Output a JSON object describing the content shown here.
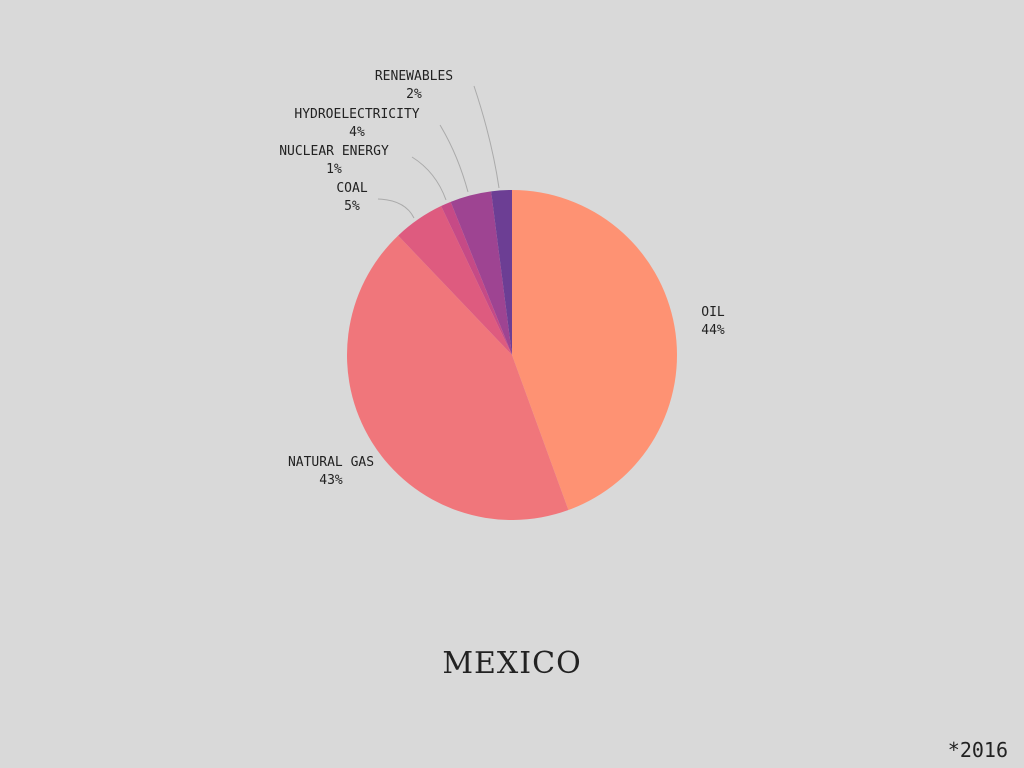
{
  "title": "MEXICO",
  "footnote": "*2016",
  "chart_data": {
    "type": "pie",
    "title": "MEXICO",
    "slices": [
      {
        "label": "OIL",
        "value": 44,
        "value_label": "44%",
        "color": "#fe9273"
      },
      {
        "label": "NATURAL GAS",
        "value": 43,
        "value_label": "43%",
        "color": "#f0767b"
      },
      {
        "label": "COAL",
        "value": 5,
        "value_label": "5%",
        "color": "#de5b7f"
      },
      {
        "label": "NUCLEAR ENERGY",
        "value": 1,
        "value_label": "1%",
        "color": "#c64a86"
      },
      {
        "label": "HYDROELECTRICITY",
        "value": 4,
        "value_label": "4%",
        "color": "#9e4492"
      },
      {
        "label": "RENEWABLES",
        "value": 2,
        "value_label": "2%",
        "color": "#6c3e94"
      }
    ],
    "start_angle": "12 o'clock",
    "direction": "clockwise"
  }
}
